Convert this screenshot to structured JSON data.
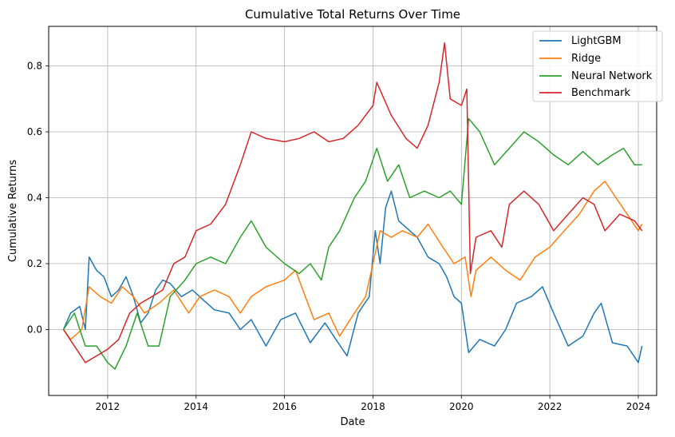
{
  "chart_data": {
    "type": "line",
    "title": "Cumulative Total Returns Over Time",
    "xlabel": "Date",
    "ylabel": "Cumulative Returns",
    "x_type": "date",
    "xlim": [
      "2010-09-01",
      "2024-06-01"
    ],
    "ylim": [
      -0.2,
      0.92
    ],
    "xticks": [
      "2012",
      "2014",
      "2016",
      "2018",
      "2020",
      "2022",
      "2024"
    ],
    "yticks": [
      0.0,
      0.2,
      0.4,
      0.6,
      0.8
    ],
    "ytick_labels": [
      "0.0",
      "0.2",
      "0.4",
      "0.6",
      "0.8"
    ],
    "grid": true,
    "legend_position": "top-right",
    "series": [
      {
        "name": "LightGBM",
        "color": "#1f77b4",
        "points": [
          [
            "2011-01-01",
            0.0
          ],
          [
            "2011-03-01",
            0.05
          ],
          [
            "2011-05-15",
            0.07
          ],
          [
            "2011-07-01",
            0.0
          ],
          [
            "2011-08-01",
            0.22
          ],
          [
            "2011-10-01",
            0.18
          ],
          [
            "2011-12-01",
            0.16
          ],
          [
            "2012-02-01",
            0.1
          ],
          [
            "2012-04-01",
            0.12
          ],
          [
            "2012-06-01",
            0.16
          ],
          [
            "2012-08-01",
            0.1
          ],
          [
            "2012-10-01",
            0.02
          ],
          [
            "2012-12-01",
            0.05
          ],
          [
            "2013-02-01",
            0.12
          ],
          [
            "2013-04-01",
            0.15
          ],
          [
            "2013-06-01",
            0.14
          ],
          [
            "2013-09-01",
            0.1
          ],
          [
            "2013-12-01",
            0.12
          ],
          [
            "2014-03-01",
            0.09
          ],
          [
            "2014-06-01",
            0.06
          ],
          [
            "2014-10-01",
            0.05
          ],
          [
            "2015-01-01",
            0.0
          ],
          [
            "2015-04-01",
            0.03
          ],
          [
            "2015-08-01",
            -0.05
          ],
          [
            "2015-12-01",
            0.03
          ],
          [
            "2016-04-01",
            0.05
          ],
          [
            "2016-08-01",
            -0.04
          ],
          [
            "2016-12-01",
            0.02
          ],
          [
            "2017-03-01",
            -0.03
          ],
          [
            "2017-06-01",
            -0.08
          ],
          [
            "2017-09-01",
            0.05
          ],
          [
            "2017-12-01",
            0.1
          ],
          [
            "2018-01-20",
            0.3
          ],
          [
            "2018-03-01",
            0.2
          ],
          [
            "2018-04-15",
            0.37
          ],
          [
            "2018-06-01",
            0.42
          ],
          [
            "2018-08-01",
            0.33
          ],
          [
            "2018-11-01",
            0.3
          ],
          [
            "2019-01-01",
            0.28
          ],
          [
            "2019-04-01",
            0.22
          ],
          [
            "2019-07-01",
            0.2
          ],
          [
            "2019-09-01",
            0.16
          ],
          [
            "2019-11-01",
            0.1
          ],
          [
            "2020-01-01",
            0.08
          ],
          [
            "2020-03-01",
            -0.07
          ],
          [
            "2020-06-01",
            -0.03
          ],
          [
            "2020-10-01",
            -0.05
          ],
          [
            "2021-01-01",
            0.0
          ],
          [
            "2021-04-01",
            0.08
          ],
          [
            "2021-08-01",
            0.1
          ],
          [
            "2021-11-01",
            0.13
          ],
          [
            "2022-02-01",
            0.05
          ],
          [
            "2022-06-01",
            -0.05
          ],
          [
            "2022-10-01",
            -0.02
          ],
          [
            "2023-01-01",
            0.05
          ],
          [
            "2023-03-01",
            0.08
          ],
          [
            "2023-06-01",
            -0.04
          ],
          [
            "2023-10-01",
            -0.05
          ],
          [
            "2024-01-01",
            -0.1
          ],
          [
            "2024-02-01",
            -0.05
          ]
        ]
      },
      {
        "name": "Ridge",
        "color": "#ff7f0e",
        "points": [
          [
            "2011-01-01",
            0.0
          ],
          [
            "2011-03-01",
            -0.03
          ],
          [
            "2011-06-01",
            0.0
          ],
          [
            "2011-08-01",
            0.13
          ],
          [
            "2011-11-01",
            0.1
          ],
          [
            "2012-02-01",
            0.08
          ],
          [
            "2012-05-01",
            0.13
          ],
          [
            "2012-08-01",
            0.1
          ],
          [
            "2012-11-01",
            0.05
          ],
          [
            "2013-03-01",
            0.08
          ],
          [
            "2013-07-01",
            0.12
          ],
          [
            "2013-11-01",
            0.05
          ],
          [
            "2014-02-01",
            0.1
          ],
          [
            "2014-06-01",
            0.12
          ],
          [
            "2014-10-01",
            0.1
          ],
          [
            "2015-01-01",
            0.05
          ],
          [
            "2015-04-01",
            0.1
          ],
          [
            "2015-08-01",
            0.13
          ],
          [
            "2016-01-01",
            0.15
          ],
          [
            "2016-04-01",
            0.18
          ],
          [
            "2016-06-01",
            0.12
          ],
          [
            "2016-09-01",
            0.03
          ],
          [
            "2017-01-01",
            0.05
          ],
          [
            "2017-04-01",
            -0.02
          ],
          [
            "2017-08-01",
            0.05
          ],
          [
            "2017-11-01",
            0.1
          ],
          [
            "2018-01-01",
            0.2
          ],
          [
            "2018-03-01",
            0.3
          ],
          [
            "2018-06-01",
            0.28
          ],
          [
            "2018-09-01",
            0.3
          ],
          [
            "2019-01-01",
            0.28
          ],
          [
            "2019-04-01",
            0.32
          ],
          [
            "2019-08-01",
            0.25
          ],
          [
            "2019-11-01",
            0.2
          ],
          [
            "2020-02-01",
            0.22
          ],
          [
            "2020-03-20",
            0.1
          ],
          [
            "2020-05-01",
            0.18
          ],
          [
            "2020-09-01",
            0.22
          ],
          [
            "2021-01-01",
            0.18
          ],
          [
            "2021-05-01",
            0.15
          ],
          [
            "2021-09-01",
            0.22
          ],
          [
            "2022-01-01",
            0.25
          ],
          [
            "2022-05-01",
            0.3
          ],
          [
            "2022-09-01",
            0.35
          ],
          [
            "2023-01-01",
            0.42
          ],
          [
            "2023-04-01",
            0.45
          ],
          [
            "2023-07-01",
            0.4
          ],
          [
            "2023-10-01",
            0.35
          ],
          [
            "2024-01-01",
            0.3
          ],
          [
            "2024-02-01",
            0.32
          ]
        ]
      },
      {
        "name": "Neural Network",
        "color": "#2ca02c",
        "points": [
          [
            "2011-01-01",
            0.0
          ],
          [
            "2011-04-01",
            0.05
          ],
          [
            "2011-07-01",
            -0.05
          ],
          [
            "2011-10-01",
            -0.05
          ],
          [
            "2012-01-01",
            -0.1
          ],
          [
            "2012-03-01",
            -0.12
          ],
          [
            "2012-06-01",
            -0.05
          ],
          [
            "2012-09-01",
            0.05
          ],
          [
            "2012-12-01",
            -0.05
          ],
          [
            "2013-03-01",
            -0.05
          ],
          [
            "2013-06-01",
            0.1
          ],
          [
            "2013-10-01",
            0.15
          ],
          [
            "2014-01-01",
            0.2
          ],
          [
            "2014-05-01",
            0.22
          ],
          [
            "2014-09-01",
            0.2
          ],
          [
            "2015-01-01",
            0.28
          ],
          [
            "2015-04-01",
            0.33
          ],
          [
            "2015-08-01",
            0.25
          ],
          [
            "2016-01-01",
            0.2
          ],
          [
            "2016-05-01",
            0.17
          ],
          [
            "2016-08-01",
            0.2
          ],
          [
            "2016-11-01",
            0.15
          ],
          [
            "2017-01-01",
            0.25
          ],
          [
            "2017-04-01",
            0.3
          ],
          [
            "2017-08-01",
            0.4
          ],
          [
            "2017-11-01",
            0.45
          ],
          [
            "2018-02-01",
            0.55
          ],
          [
            "2018-05-01",
            0.45
          ],
          [
            "2018-08-01",
            0.5
          ],
          [
            "2018-11-01",
            0.4
          ],
          [
            "2019-03-01",
            0.42
          ],
          [
            "2019-07-01",
            0.4
          ],
          [
            "2019-10-01",
            0.42
          ],
          [
            "2020-01-01",
            0.38
          ],
          [
            "2020-03-01",
            0.64
          ],
          [
            "2020-06-01",
            0.6
          ],
          [
            "2020-10-01",
            0.5
          ],
          [
            "2021-02-01",
            0.55
          ],
          [
            "2021-06-01",
            0.6
          ],
          [
            "2021-10-01",
            0.57
          ],
          [
            "2022-02-01",
            0.53
          ],
          [
            "2022-06-01",
            0.5
          ],
          [
            "2022-10-01",
            0.54
          ],
          [
            "2023-02-01",
            0.5
          ],
          [
            "2023-06-01",
            0.53
          ],
          [
            "2023-09-01",
            0.55
          ],
          [
            "2023-12-01",
            0.5
          ],
          [
            "2024-02-01",
            0.5
          ]
        ]
      },
      {
        "name": "Benchmark",
        "color": "#d62728",
        "points": [
          [
            "2011-01-01",
            0.0
          ],
          [
            "2011-04-01",
            -0.05
          ],
          [
            "2011-07-01",
            -0.1
          ],
          [
            "2011-10-01",
            -0.08
          ],
          [
            "2012-01-01",
            -0.06
          ],
          [
            "2012-04-01",
            -0.03
          ],
          [
            "2012-07-01",
            0.05
          ],
          [
            "2012-10-01",
            0.08
          ],
          [
            "2013-01-01",
            0.1
          ],
          [
            "2013-04-01",
            0.12
          ],
          [
            "2013-07-01",
            0.2
          ],
          [
            "2013-10-01",
            0.22
          ],
          [
            "2014-01-01",
            0.3
          ],
          [
            "2014-05-01",
            0.32
          ],
          [
            "2014-09-01",
            0.38
          ],
          [
            "2015-01-01",
            0.5
          ],
          [
            "2015-04-01",
            0.6
          ],
          [
            "2015-08-01",
            0.58
          ],
          [
            "2016-01-01",
            0.57
          ],
          [
            "2016-05-01",
            0.58
          ],
          [
            "2016-09-01",
            0.6
          ],
          [
            "2017-01-01",
            0.57
          ],
          [
            "2017-05-01",
            0.58
          ],
          [
            "2017-09-01",
            0.62
          ],
          [
            "2018-01-01",
            0.68
          ],
          [
            "2018-02-01",
            0.75
          ],
          [
            "2018-06-01",
            0.65
          ],
          [
            "2018-10-01",
            0.58
          ],
          [
            "2019-01-01",
            0.55
          ],
          [
            "2019-04-01",
            0.62
          ],
          [
            "2019-07-01",
            0.75
          ],
          [
            "2019-08-15",
            0.87
          ],
          [
            "2019-10-01",
            0.7
          ],
          [
            "2020-01-01",
            0.68
          ],
          [
            "2020-02-15",
            0.73
          ],
          [
            "2020-03-15",
            0.17
          ],
          [
            "2020-05-01",
            0.28
          ],
          [
            "2020-09-01",
            0.3
          ],
          [
            "2020-12-01",
            0.25
          ],
          [
            "2021-02-01",
            0.38
          ],
          [
            "2021-06-01",
            0.42
          ],
          [
            "2021-10-01",
            0.38
          ],
          [
            "2022-02-01",
            0.3
          ],
          [
            "2022-06-01",
            0.35
          ],
          [
            "2022-10-01",
            0.4
          ],
          [
            "2023-01-01",
            0.38
          ],
          [
            "2023-04-01",
            0.3
          ],
          [
            "2023-08-01",
            0.35
          ],
          [
            "2023-12-01",
            0.33
          ],
          [
            "2024-02-01",
            0.3
          ]
        ]
      }
    ]
  }
}
